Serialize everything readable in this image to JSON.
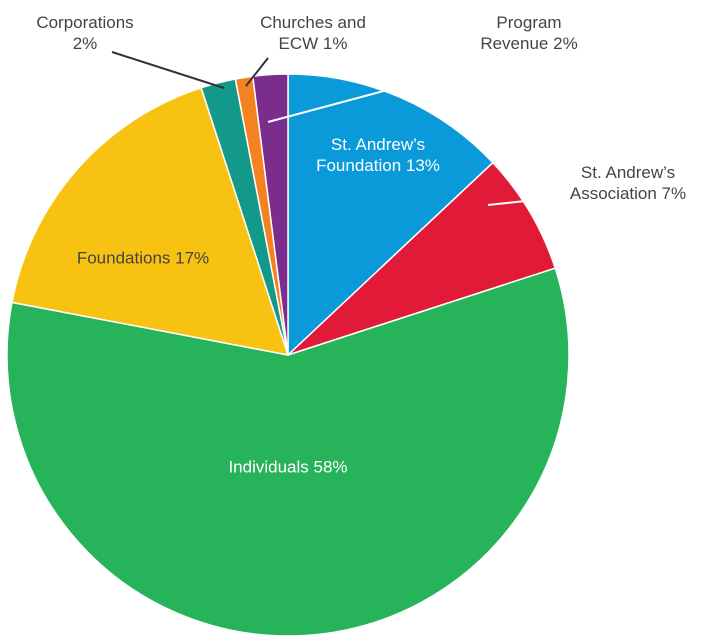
{
  "chart_data": {
    "type": "pie",
    "categories": [
      "St. Andrew’s Foundation",
      "St. Andrew’s Association",
      "Individuals",
      "Foundations",
      "Corporations",
      "Churches and ECW",
      "Program Revenue"
    ],
    "values": [
      13,
      7,
      58,
      17,
      2,
      1,
      2
    ],
    "value_labels": [
      "13%",
      "7%",
      "58%",
      "17%",
      "2%",
      "1%",
      "2%"
    ],
    "colors": [
      "#0a9ad9",
      "#e01a37",
      "#27b35a",
      "#f8c212",
      "#13998a",
      "#f58220",
      "#7b2d8e"
    ]
  }
}
